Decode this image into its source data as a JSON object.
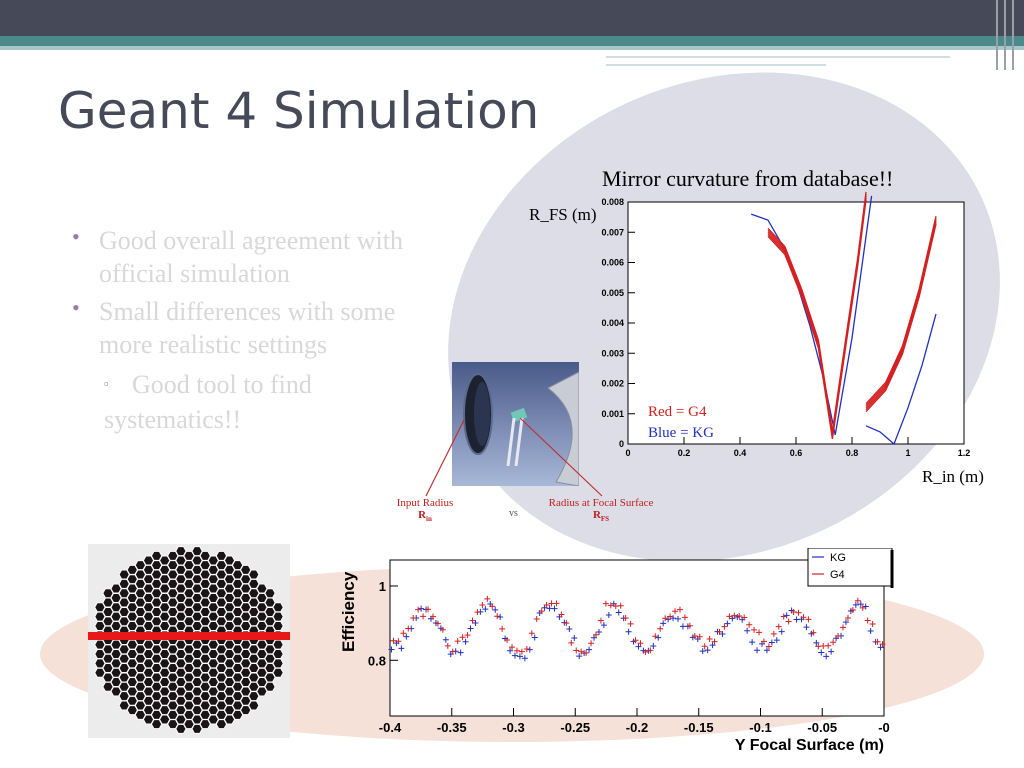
{
  "slide": {
    "title": "Geant 4 Simulation",
    "bullets": [
      {
        "text": "Good overall agreement with official simulation",
        "lines": [
          "Good overall agreement with",
          "official simulation"
        ]
      },
      {
        "text": "Small differences with some more realistic settings",
        "lines": [
          "Small differences with some",
          "more realistic settings"
        ]
      }
    ],
    "subbullet": {
      "line1": "Good tool to find",
      "line2": "systematics!!"
    },
    "caption": "Mirror curvature from database!!",
    "diagram": {
      "input_label": "Input Radius",
      "input_symbol": "R",
      "input_sub": "in",
      "vs": "vs",
      "focal_label": "Radius at Focal Surface",
      "focal_symbol": "R",
      "focal_sub": "FS"
    },
    "colors": {
      "topbar": "#454958",
      "teal": "#4a8a8a",
      "bullet_dot": "#9a7bb0",
      "red": "#d42020",
      "blue": "#2030c0"
    }
  },
  "chart_data": [
    {
      "type": "line",
      "title": "",
      "xlabel": "R_in (m)",
      "ylabel": "R_FS (m)",
      "xlim": [
        0,
        1.2
      ],
      "ylim": [
        0,
        0.008
      ],
      "x_ticks": [
        "0",
        "0.2",
        "0.4",
        "0.6",
        "0.8",
        "1",
        "1.2"
      ],
      "y_ticks": [
        "0",
        "0.001",
        "0.002",
        "0.003",
        "0.004",
        "0.005",
        "0.006",
        "0.007",
        "0.008"
      ],
      "legend": [
        {
          "name": "Red =  G4",
          "color": "#d42020"
        },
        {
          "name": "Blue = KG",
          "color": "#2030c0"
        }
      ],
      "legend_position": "bottom-left",
      "series": [
        {
          "name": "KG",
          "color": "#2030c0",
          "segments": [
            [
              [
                0.44,
                0.0076
              ],
              [
                0.5,
                0.0074
              ],
              [
                0.55,
                0.0066
              ],
              [
                0.6,
                0.0054
              ],
              [
                0.65,
                0.0039
              ],
              [
                0.7,
                0.0021
              ],
              [
                0.74,
                0.0003
              ]
            ],
            [
              [
                0.74,
                0.0003
              ],
              [
                0.8,
                0.0035
              ],
              [
                0.87,
                0.0082
              ]
            ],
            [
              [
                0.85,
                0.0006
              ],
              [
                0.9,
                0.0004
              ],
              [
                0.95,
                0.0
              ],
              [
                1.0,
                0.0012
              ],
              [
                1.05,
                0.0026
              ],
              [
                1.1,
                0.0043
              ]
            ]
          ]
        },
        {
          "name": "G4",
          "color": "#d42020",
          "segments": [
            [
              [
                0.5,
                0.007
              ],
              [
                0.56,
                0.0064
              ],
              [
                0.62,
                0.005
              ],
              [
                0.68,
                0.0033
              ],
              [
                0.73,
                0.0003
              ]
            ],
            [
              [
                0.73,
                0.0003
              ],
              [
                0.78,
                0.0035
              ],
              [
                0.82,
                0.006
              ],
              [
                0.85,
                0.0082
              ]
            ],
            [
              [
                0.85,
                0.0012
              ],
              [
                0.92,
                0.0019
              ],
              [
                0.98,
                0.0031
              ],
              [
                1.04,
                0.005
              ],
              [
                1.1,
                0.0074
              ]
            ]
          ]
        }
      ]
    },
    {
      "type": "scatter",
      "title": "",
      "xlabel": "Y Focal Surface (m)",
      "ylabel": "Efficiency",
      "xlim": [
        -0.4,
        0
      ],
      "ylim": [
        0.65,
        1.07
      ],
      "x_ticks": [
        "-0.4",
        "-0.35",
        "-0.3",
        "-0.25",
        "-0.2",
        "-0.15",
        "-0.1",
        "-0.05",
        "-0"
      ],
      "y_ticks": [
        "0.8",
        "1"
      ],
      "legend": [
        {
          "name": "KG",
          "color": "#2030c0"
        },
        {
          "name": "G4",
          "color": "#d42020"
        }
      ],
      "legend_position": "top-right",
      "period_m": 0.05,
      "phase_m": -0.37,
      "amplitude": 0.055,
      "mean": 0.89,
      "series": [
        {
          "name": "KG",
          "color": "#2030c0",
          "marker": "+"
        },
        {
          "name": "G4",
          "color": "#d42020",
          "marker": "+"
        }
      ]
    }
  ]
}
